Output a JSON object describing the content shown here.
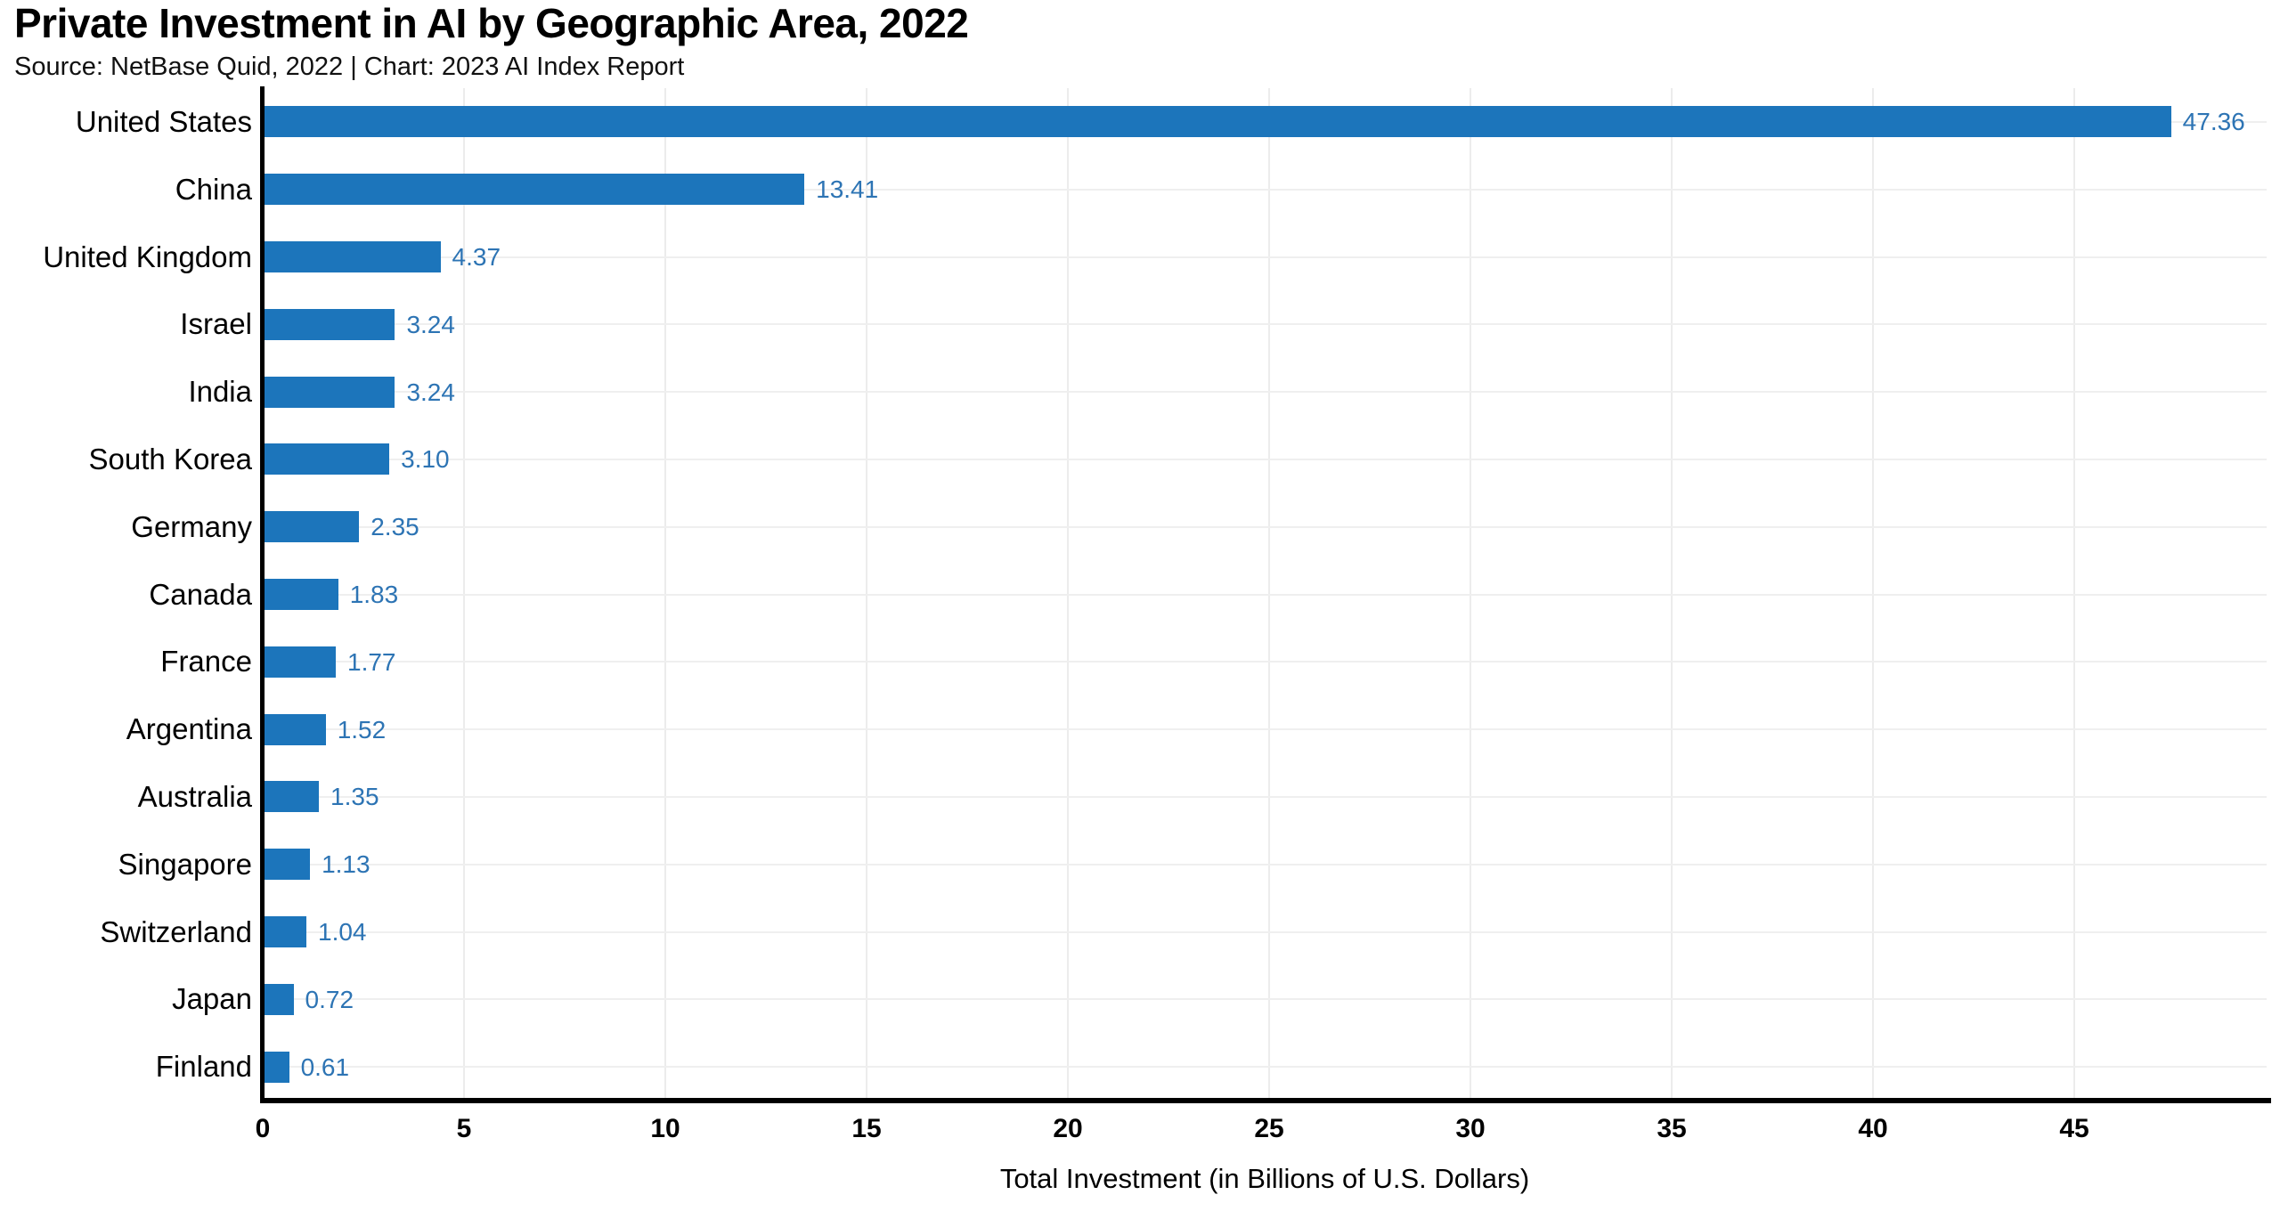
{
  "accent_colors": {
    "bar_fill": "#1c75bb",
    "value_label_text": "#2d74b4",
    "axis_line": "#000000",
    "gridline": "#ececec",
    "background": "#ffffff",
    "text": "#000000"
  },
  "chart_data": {
    "type": "bar",
    "orientation": "horizontal",
    "title": "Private Investment in AI by Geographic Area, 2022",
    "subtitle": "Source: NetBase Quid, 2022 | Chart: 2023 AI Index Report",
    "xlabel": "Total Investment (in Billions of U.S. Dollars)",
    "ylabel": "",
    "categories": [
      "United States",
      "China",
      "United Kingdom",
      "Israel",
      "India",
      "South Korea",
      "Germany",
      "Canada",
      "France",
      "Argentina",
      "Australia",
      "Singapore",
      "Switzerland",
      "Japan",
      "Finland"
    ],
    "values": [
      47.36,
      13.41,
      4.37,
      3.24,
      3.24,
      3.1,
      2.35,
      1.83,
      1.77,
      1.52,
      1.35,
      1.13,
      1.04,
      0.72,
      0.61
    ],
    "value_labels": [
      "47.36",
      "13.41",
      "4.37",
      "3.24",
      "3.24",
      "3.10",
      "2.35",
      "1.83",
      "1.77",
      "1.52",
      "1.35",
      "1.13",
      "1.04",
      "0.72",
      "0.61"
    ],
    "xlim": [
      0,
      50
    ],
    "xticks": [
      0,
      5,
      10,
      15,
      20,
      25,
      30,
      35,
      40,
      45
    ],
    "grid": "on",
    "legend": "none"
  }
}
